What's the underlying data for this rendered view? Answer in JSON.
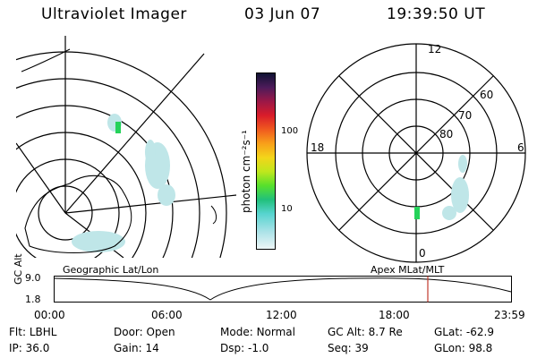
{
  "header": {
    "instrument": "Ultraviolet Imager",
    "date": "03 Jun 07",
    "time": "19:39:50 UT"
  },
  "colorbar": {
    "unit_label": "photon cm⁻²s⁻¹",
    "ticks": [
      "100",
      "10"
    ]
  },
  "polar_plot": {
    "mlt_labels": {
      "top": "12",
      "left": "18",
      "right": "6",
      "bottom": "0"
    },
    "lat_labels": [
      "60",
      "70",
      "80"
    ]
  },
  "strip": {
    "left_caption": "Geographic Lat/Lon",
    "right_caption": "Apex MLat/MLT",
    "y_axis_label": "GC Alt",
    "y_ticks": [
      "9.0",
      "1.8"
    ],
    "x_ticks": [
      "00:00",
      "06:00",
      "12:00",
      "18:00",
      "23:59"
    ]
  },
  "metadata": {
    "row1": [
      {
        "label": "Flt:",
        "value": "LBHL"
      },
      {
        "label": "Door:",
        "value": "Open"
      },
      {
        "label": "Mode:",
        "value": "Normal"
      },
      {
        "label": "GC Alt:",
        "value": "8.7 Re"
      },
      {
        "label": "GLat:",
        "value": "-62.9"
      }
    ],
    "row2": [
      {
        "label": "IP:",
        "value": "36.0"
      },
      {
        "label": "Gain:",
        "value": "14"
      },
      {
        "label": "Dsp:",
        "value": "-1.0"
      },
      {
        "label": "Seq:",
        "value": "39"
      },
      {
        "label": "GLon:",
        "value": "98.8"
      }
    ]
  }
}
